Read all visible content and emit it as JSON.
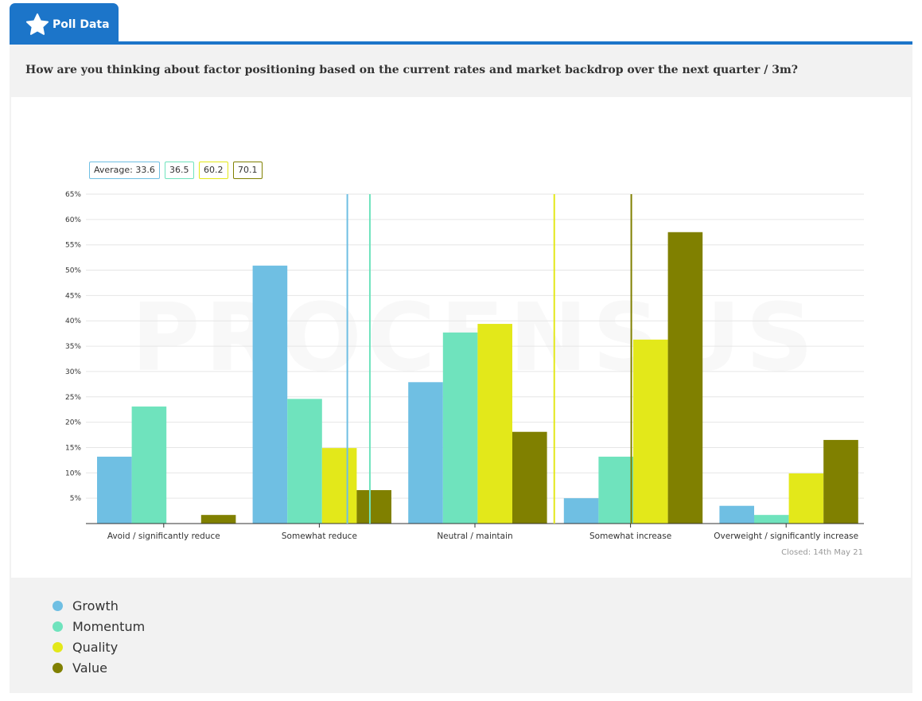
{
  "tab": {
    "label": "Poll Data",
    "icon": "star-icon"
  },
  "question": "How are you thinking about factor positioning based on the current rates and market backdrop over the next quarter / 3m?",
  "watermark": "PROCENSUS",
  "closed": "Closed: 14th May 21",
  "chart_data": {
    "type": "bar",
    "title": "",
    "categories": [
      "Avoid / significantly reduce",
      "Somewhat reduce",
      "Neutral / maintain",
      "Somewhat increase",
      "Overweight / significantly increase"
    ],
    "series": [
      {
        "name": "Growth",
        "color": "#6fbfe3",
        "values": [
          13.2,
          50.9,
          27.9,
          5.0,
          3.5
        ],
        "average": 33.6,
        "average_label": "Average: 33.6"
      },
      {
        "name": "Momentum",
        "color": "#6fe3bd",
        "values": [
          23.1,
          24.6,
          37.7,
          13.2,
          1.7
        ],
        "average": 36.5,
        "average_label": "36.5"
      },
      {
        "name": "Quality",
        "color": "#e3e81a",
        "values": [
          0,
          14.9,
          39.4,
          36.3,
          9.9
        ],
        "average": 60.2,
        "average_label": "60.2"
      },
      {
        "name": "Value",
        "color": "#808000",
        "values": [
          1.7,
          6.6,
          18.1,
          57.5,
          16.5
        ],
        "average": 70.1,
        "average_label": "70.1"
      }
    ],
    "yticks": [
      "5%",
      "10%",
      "15%",
      "20%",
      "25%",
      "30%",
      "35%",
      "40%",
      "45%",
      "50%",
      "55%",
      "60%",
      "65%"
    ],
    "ylim": [
      0,
      65
    ],
    "average_scale": [
      0,
      100
    ],
    "grid": true,
    "legend": "bottom-left"
  }
}
